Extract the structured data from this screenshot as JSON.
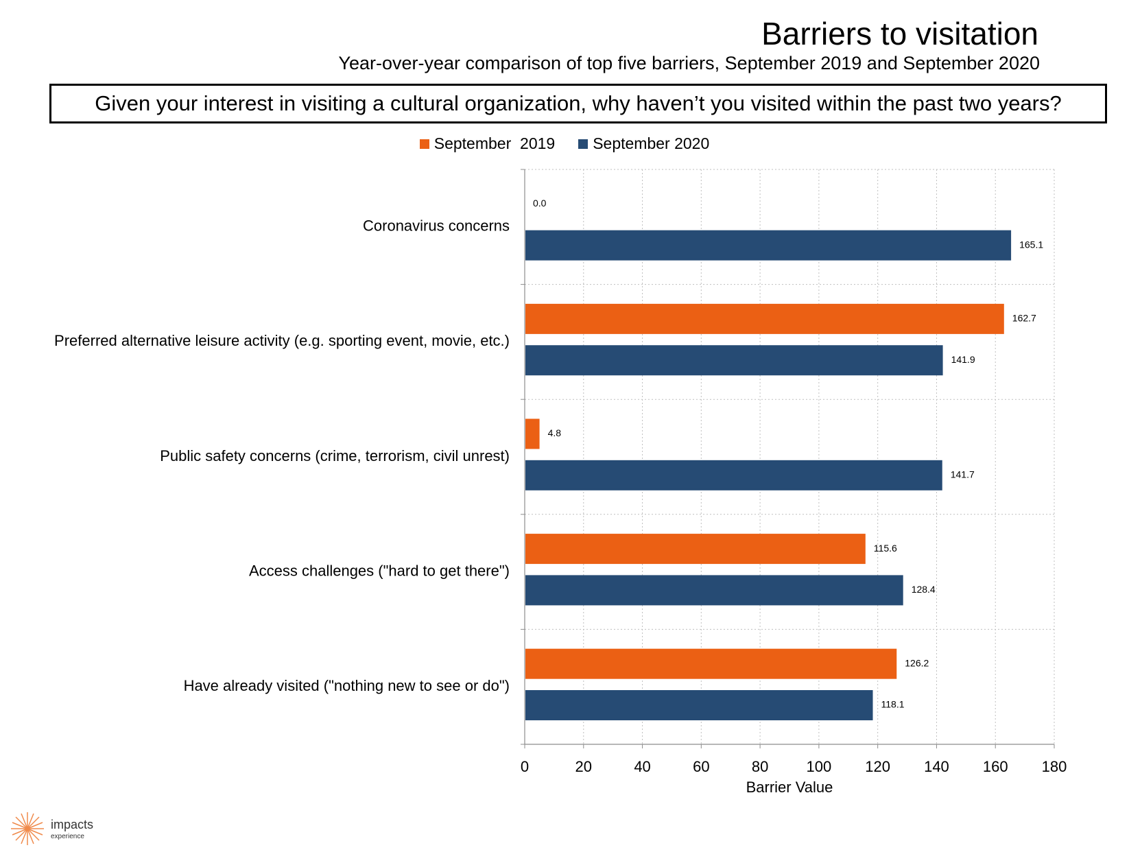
{
  "header": {
    "title": "Barriers to visitation",
    "subtitle": "Year-over-year comparison of top five barriers, September 2019 and September 2020",
    "question": "Given your interest in visiting a cultural organization, why haven’t you visited within the past two years?"
  },
  "colors": {
    "s2019": "#EB6014",
    "s2020": "#264B74",
    "grid": "#bfbfbf",
    "axis": "#8c8c8c"
  },
  "chart_data": {
    "type": "bar",
    "orientation": "horizontal",
    "categories": [
      "Coronavirus concerns",
      "Preferred alternative leisure activity (e.g. sporting event, movie, etc.)",
      "Public safety concerns (crime, terrorism, civil unrest)",
      "Access challenges (\"hard to get there\")",
      "Have already visited (\"nothing new to see or do\")"
    ],
    "series": [
      {
        "name": "September  2019",
        "values": [
          0.0,
          162.7,
          4.8,
          115.6,
          126.2
        ],
        "labels": [
          "0.0",
          "162.7",
          "4.8",
          "115.6",
          "126.2"
        ]
      },
      {
        "name": "September 2020",
        "values": [
          165.1,
          141.9,
          141.7,
          128.4,
          118.1
        ],
        "labels": [
          "165.1",
          "141.9",
          "141.7",
          "128.4",
          "118.1"
        ]
      }
    ],
    "xlabel": "Barrier Value",
    "xlim": [
      0,
      180
    ],
    "xticks": [
      0,
      20,
      40,
      60,
      80,
      100,
      120,
      140,
      160,
      180
    ],
    "grid": true,
    "legend_position": "top-center"
  },
  "logo": {
    "name": "impacts",
    "sub": "experience"
  }
}
